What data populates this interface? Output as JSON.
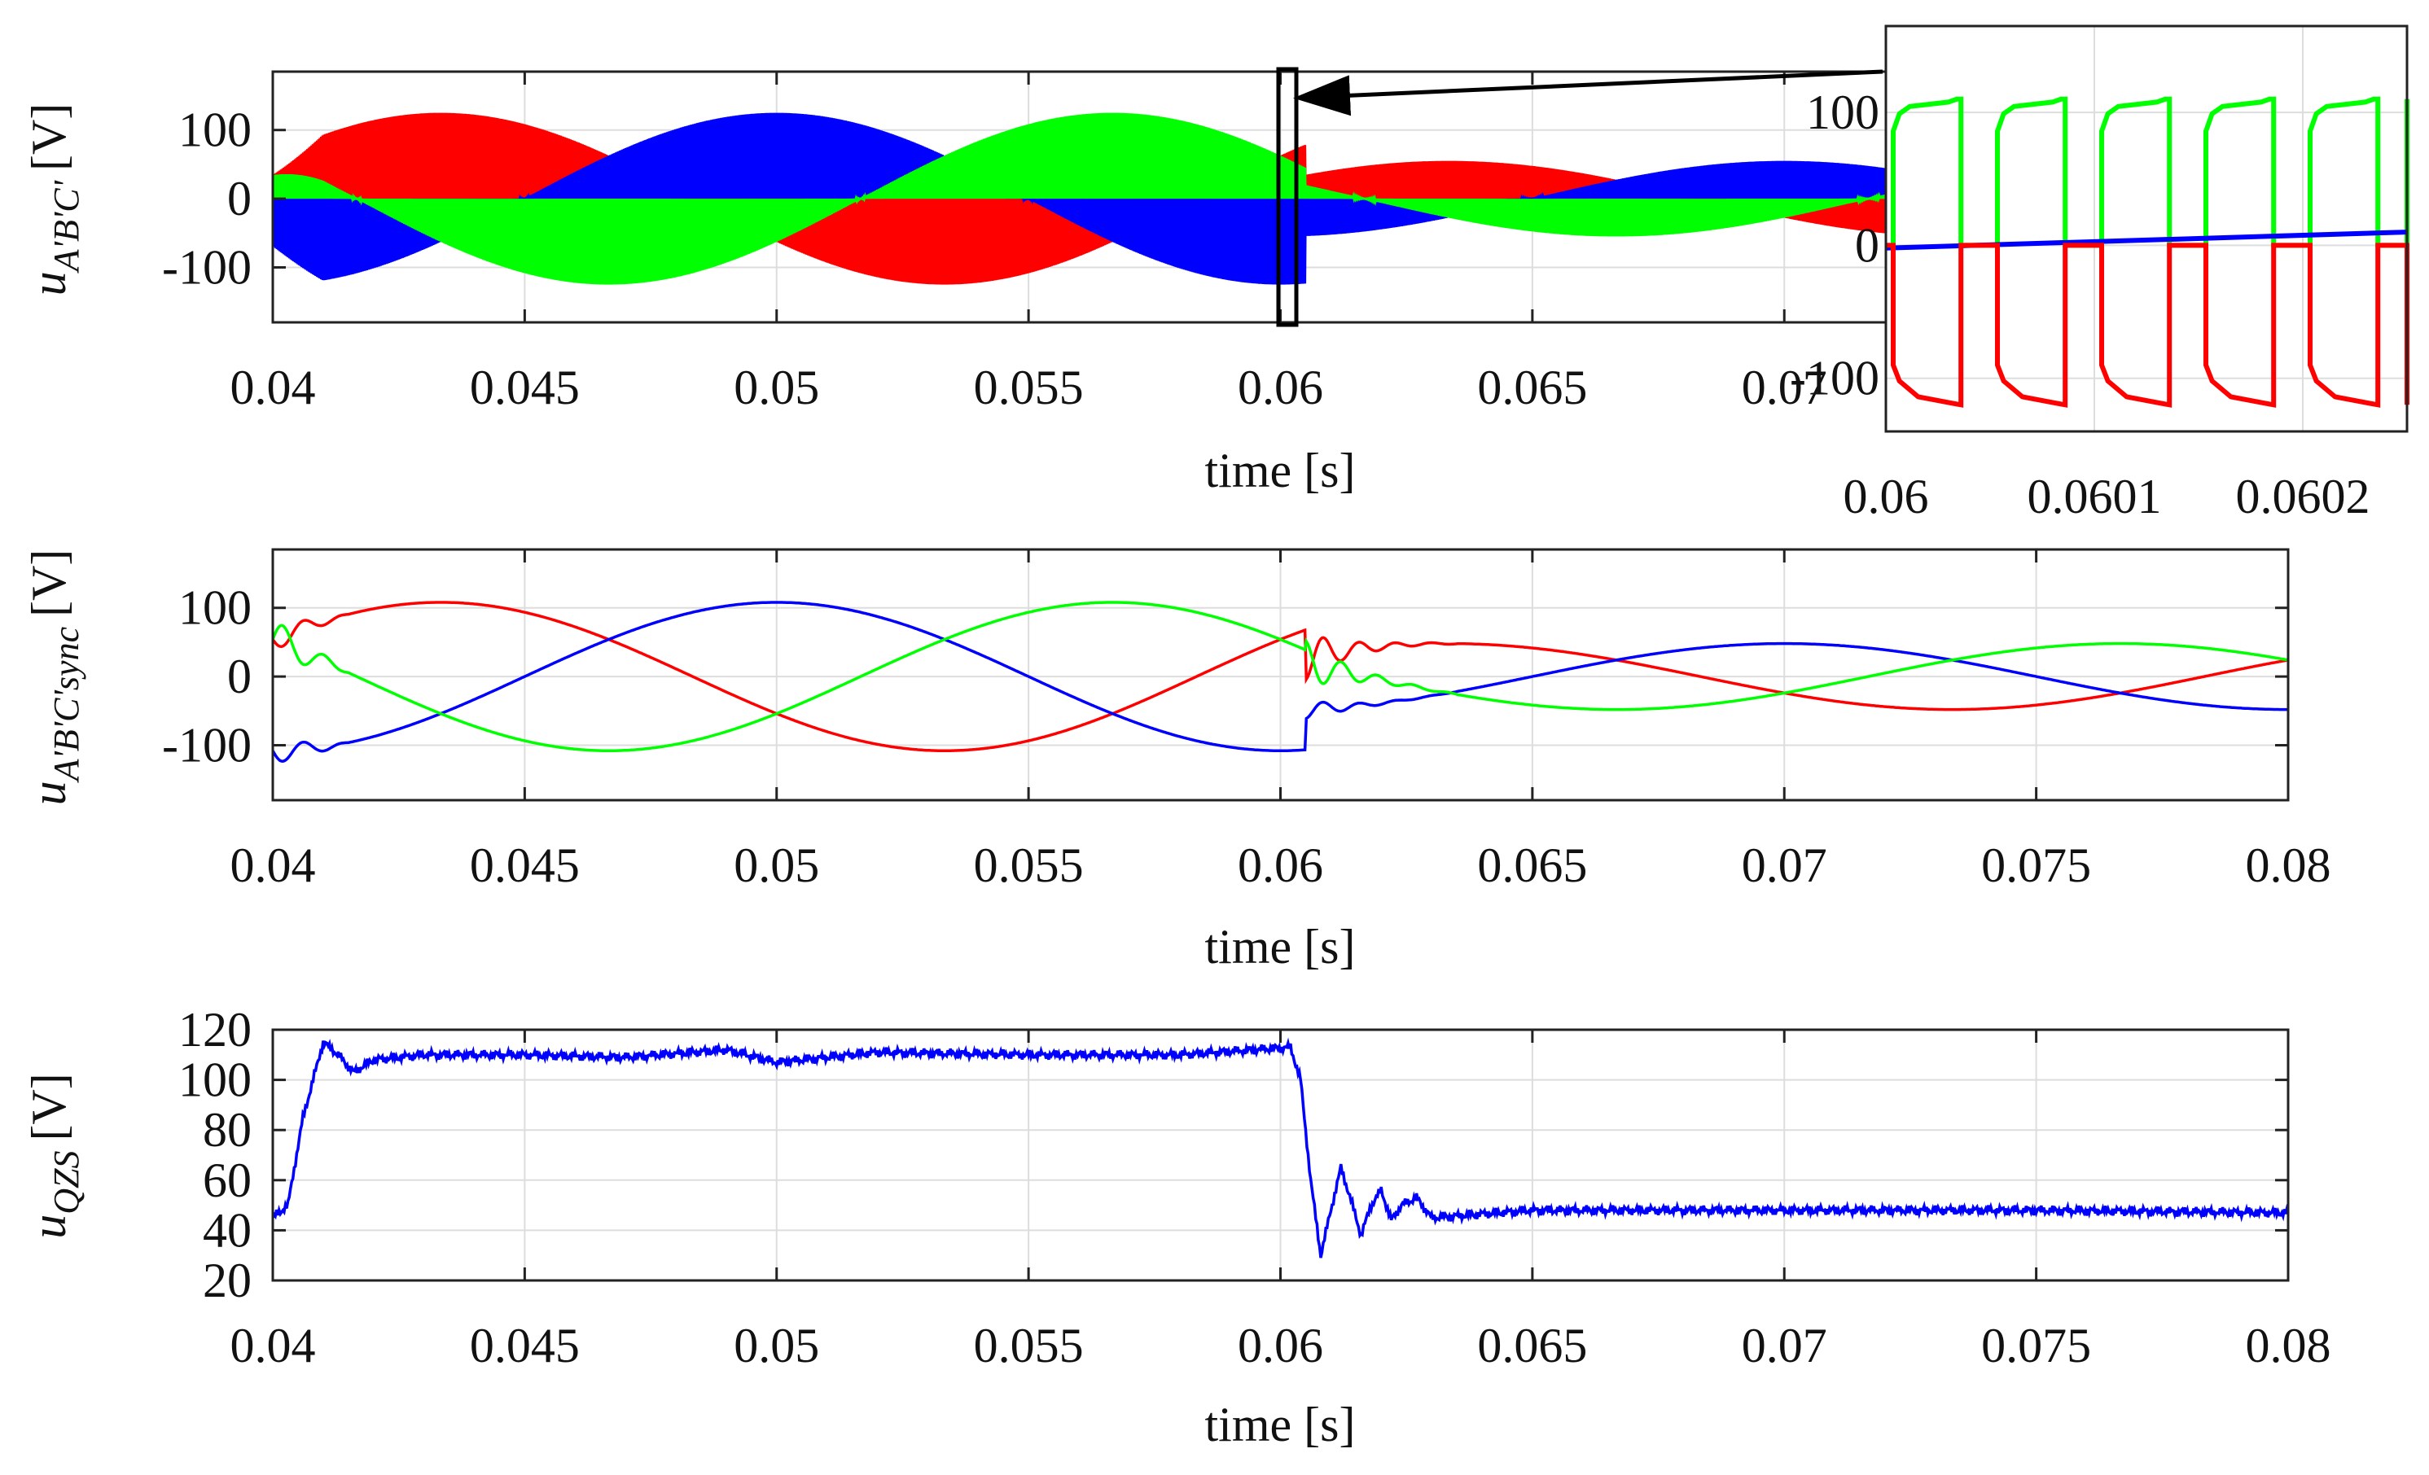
{
  "figure": {
    "colors": {
      "phase_A": "#ff0000",
      "phase_B": "#0000ff",
      "phase_C": "#00ff00",
      "frame": "#222222",
      "grid": "#dddddd"
    }
  },
  "chart_data": [
    {
      "id": "top",
      "type": "line",
      "xlabel": "time [s]",
      "ylabel": {
        "sym": "u",
        "sub": "A'B'C'",
        "unit": "[V]"
      },
      "xlim": [
        0.04,
        0.08
      ],
      "ylim": [
        -180,
        185
      ],
      "xticks": [
        0.04,
        0.045,
        0.05,
        0.055,
        0.06,
        0.065,
        0.07
      ],
      "xtick_labels": [
        "0.04",
        "0.045",
        "0.05",
        "0.055",
        "0.06",
        "0.065",
        "0.07"
      ],
      "yticks": [
        -100,
        0,
        100
      ],
      "ytick_labels": [
        "-100",
        "0",
        "100"
      ],
      "grid": true,
      "description_of_signal": "PWM switched output voltages; envelope ~±120 V before 0.06 s, ~±50 V after",
      "series": [
        {
          "color": "#ff0000",
          "phase_offset_deg": 240,
          "envelope_before": 125,
          "envelope_after": 55
        },
        {
          "color": "#0000ff",
          "phase_offset_deg": 0,
          "envelope_before": 125,
          "envelope_after": 55
        },
        {
          "color": "#00ff00",
          "phase_offset_deg": 120,
          "envelope_before": 125,
          "envelope_after": 55
        }
      ],
      "annotation": {
        "highlight_x": [
          0.0599,
          0.0602
        ]
      }
    },
    {
      "id": "inset",
      "type": "line",
      "xlim": [
        0.06,
        0.06025
      ],
      "ylim": [
        -140,
        165
      ],
      "xticks": [
        0.06,
        0.0601,
        0.0602
      ],
      "xtick_labels": [
        "0.06",
        "0.0601",
        "0.0602"
      ],
      "yticks": [
        -100,
        0,
        100
      ],
      "ytick_labels": [
        "-100",
        "0",
        "100"
      ],
      "grid": true,
      "series": [
        {
          "color": "#00ff00",
          "pulse_high": 110,
          "pulse_low": 0
        },
        {
          "color": "#0000ff",
          "start": -2,
          "end": 10
        },
        {
          "color": "#ff0000",
          "pulse_high": 0,
          "pulse_low": -120
        }
      ]
    },
    {
      "id": "middle",
      "type": "line",
      "xlabel": "time [s]",
      "ylabel": {
        "sym": "u",
        "sub": "A'B'C'sync",
        "unit": "[V]"
      },
      "xlim": [
        0.04,
        0.08
      ],
      "ylim": [
        -180,
        185
      ],
      "xticks": [
        0.04,
        0.045,
        0.05,
        0.055,
        0.06,
        0.065,
        0.07,
        0.075,
        0.08
      ],
      "xtick_labels": [
        "0.04",
        "0.045",
        "0.05",
        "0.055",
        "0.06",
        "0.065",
        "0.07",
        "0.075",
        "0.08"
      ],
      "yticks": [
        -100,
        0,
        100
      ],
      "ytick_labels": [
        "-100",
        "0",
        "100"
      ],
      "grid": true,
      "series": [
        {
          "color": "#ff0000",
          "amp_before": 108,
          "amp_after": 48,
          "phase_offset_deg": 240
        },
        {
          "color": "#0000ff",
          "amp_before": 108,
          "amp_after": 48,
          "phase_offset_deg": 0
        },
        {
          "color": "#00ff00",
          "amp_before": 108,
          "amp_after": 48,
          "phase_offset_deg": 120
        }
      ]
    },
    {
      "id": "bottom",
      "type": "line",
      "xlabel": "time [s]",
      "ylabel": {
        "sym": "u",
        "sub": "QZS",
        "unit": "[V]"
      },
      "xlim": [
        0.04,
        0.08
      ],
      "ylim": [
        20,
        120
      ],
      "xticks": [
        0.04,
        0.045,
        0.05,
        0.055,
        0.06,
        0.065,
        0.07,
        0.075,
        0.08
      ],
      "xtick_labels": [
        "0.04",
        "0.045",
        "0.05",
        "0.055",
        "0.06",
        "0.065",
        "0.07",
        "0.075",
        "0.08"
      ],
      "yticks": [
        20,
        40,
        60,
        80,
        100,
        120
      ],
      "ytick_labels": [
        "20",
        "40",
        "60",
        "80",
        "100",
        "120"
      ],
      "grid": true,
      "series": [
        {
          "color": "#0000ff",
          "x": [
            0.04,
            0.0403,
            0.0406,
            0.041,
            0.0413,
            0.0416,
            0.042,
            0.043,
            0.045,
            0.047,
            0.049,
            0.05,
            0.052,
            0.055,
            0.058,
            0.0602,
            0.0604,
            0.0606,
            0.0608,
            0.061,
            0.0612,
            0.0614,
            0.0616,
            0.0618,
            0.062,
            0.0622,
            0.0624,
            0.0627,
            0.063,
            0.065,
            0.07,
            0.075,
            0.08
          ],
          "y": [
            45,
            50,
            85,
            115,
            110,
            103,
            108,
            110,
            110,
            109,
            112,
            107,
            111,
            110,
            110,
            113,
            100,
            60,
            30,
            48,
            65,
            52,
            38,
            50,
            56,
            44,
            50,
            53,
            45,
            48,
            48,
            48,
            47
          ]
        }
      ]
    }
  ]
}
